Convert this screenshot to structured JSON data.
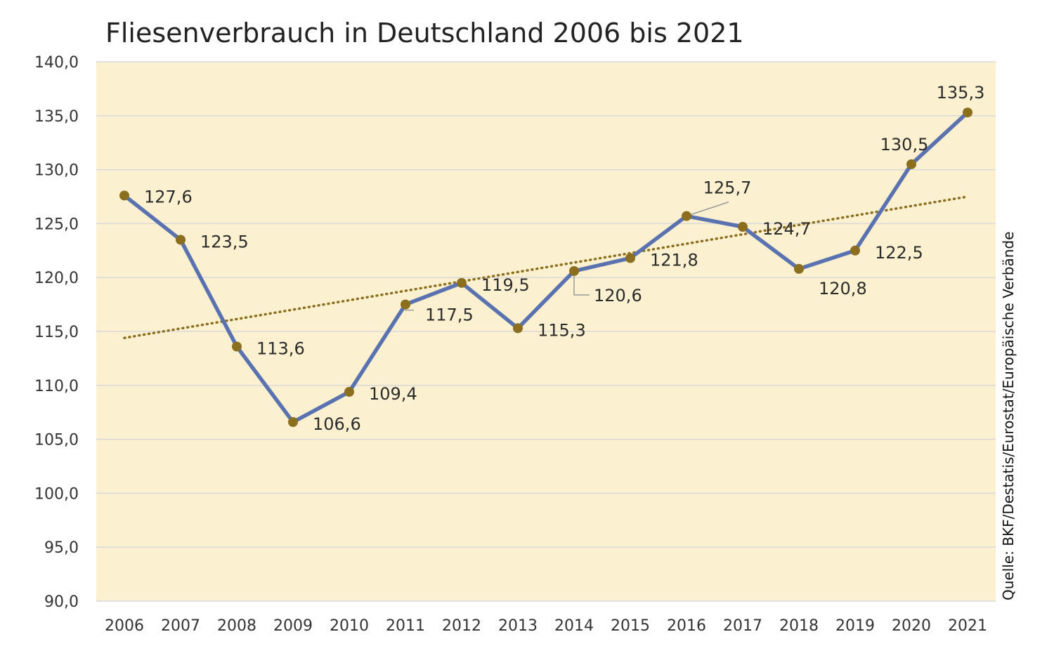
{
  "chart_data": {
    "type": "line",
    "title": "Fliesenverbrauch in Deutschland 2006 bis 2021",
    "xlabel": "",
    "ylabel": "",
    "categories": [
      "2006",
      "2007",
      "2008",
      "2009",
      "2010",
      "2011",
      "2012",
      "2013",
      "2014",
      "2015",
      "2016",
      "2017",
      "2018",
      "2019",
      "2020",
      "2021"
    ],
    "series": [
      {
        "values": [
          127.6,
          123.5,
          113.6,
          106.6,
          109.4,
          117.5,
          119.5,
          115.3,
          120.6,
          121.8,
          125.7,
          124.7,
          120.8,
          122.5,
          130.5,
          135.3
        ],
        "value_labels": [
          "127,6",
          "123,5",
          "113,6",
          "106,6",
          "109,4",
          "117,5",
          "119,5",
          "115,3",
          "120,6",
          "121,8",
          "125,7",
          "124,7",
          "120,8",
          "122,5",
          "130,5",
          "135,3"
        ]
      }
    ],
    "trendline": {
      "type": "linear",
      "start_value": 114.4,
      "end_value": 127.5
    },
    "ylim": [
      90,
      140
    ],
    "y_ticks": [
      90,
      95,
      100,
      105,
      110,
      115,
      120,
      125,
      130,
      135,
      140
    ],
    "y_tick_labels": [
      "90,0",
      "95,0",
      "100,0",
      "105,0",
      "110,0",
      "115,0",
      "120,0",
      "125,0",
      "130,0",
      "135,0",
      "140,0"
    ],
    "grid": true,
    "source": "Quelle: BKF/Destatis/Eurostat/Europäische Verbände",
    "colors": {
      "line": "#5a72b0",
      "marker": "#8b6e1e",
      "trendline": "#8b6e1e",
      "plot_background": "#fbf0cf",
      "gridline": "#d9d9d9"
    }
  }
}
